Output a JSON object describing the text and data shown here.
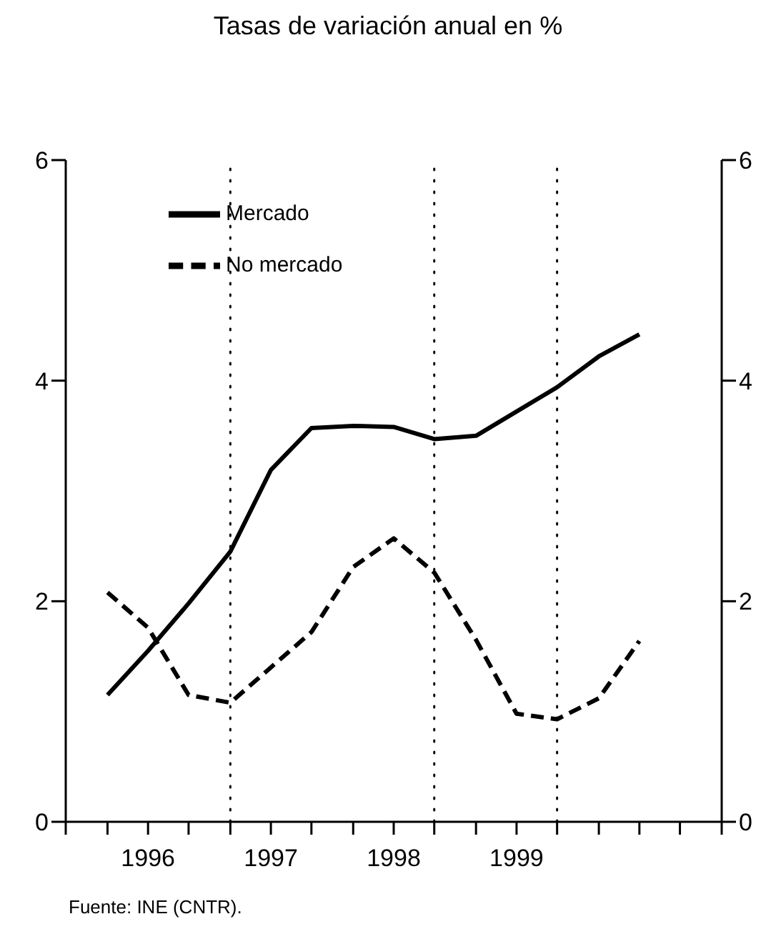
{
  "chart_data": {
    "type": "line",
    "title": "Tasas de variación anual en %",
    "x": [
      1995.67,
      1996,
      1996.33,
      1996.67,
      1997,
      1997.33,
      1997.67,
      1998,
      1998.33,
      1998.67,
      1999,
      1999.33,
      1999.67,
      2000
    ],
    "series": [
      {
        "name": "Mercado",
        "color": "#000000",
        "line_style": "solid",
        "values": [
          1.15,
          1.55,
          1.98,
          2.45,
          3.19,
          3.57,
          3.59,
          3.58,
          3.47,
          3.5,
          3.72,
          3.94,
          4.22,
          4.42
        ]
      },
      {
        "name": "No mercado",
        "color": "#000000",
        "line_style": "dashed",
        "values": [
          2.08,
          1.76,
          1.15,
          1.08,
          1.4,
          1.72,
          2.31,
          2.57,
          2.26,
          1.65,
          0.98,
          0.93,
          1.12,
          1.64
        ]
      }
    ],
    "xlim": [
      1995.33,
      2000.67
    ],
    "xticks": [
      {
        "value": 1995.33,
        "label": null
      },
      {
        "value": 1995.67,
        "label": null
      },
      1996,
      {
        "value": 1996.33,
        "label": null
      },
      {
        "value": 1996.67,
        "label": null
      },
      1997,
      {
        "value": 1997.33,
        "label": null
      },
      {
        "value": 1997.67,
        "label": null
      },
      1998,
      {
        "value": 1998.33,
        "label": null
      },
      {
        "value": 1998.67,
        "label": null
      },
      1999,
      {
        "value": 1999.33,
        "label": null
      },
      {
        "value": 1999.67,
        "label": null
      },
      {
        "value": 2000,
        "label": null
      },
      {
        "value": 2000.33,
        "label": null
      },
      {
        "value": 2000.67,
        "label": null
      }
    ],
    "ylim": [
      0,
      6
    ],
    "yticks": [
      0,
      2,
      4,
      6
    ],
    "y2lim": [
      0,
      6
    ],
    "y2ticks": [
      0,
      2,
      4,
      6
    ],
    "ref_lines": [
      {
        "axis": "x",
        "value": 1996.67,
        "line_style": "dotted",
        "color": "#000000"
      },
      {
        "axis": "x",
        "value": 1998.33,
        "line_style": "dotted",
        "color": "#000000"
      },
      {
        "axis": "x",
        "value": 1999.33,
        "line_style": "dotted",
        "color": "#000000"
      }
    ],
    "legend": "top left",
    "grid": false,
    "marker": "none",
    "annotations": [
      "Fuente: INE (CNTR)."
    ]
  }
}
